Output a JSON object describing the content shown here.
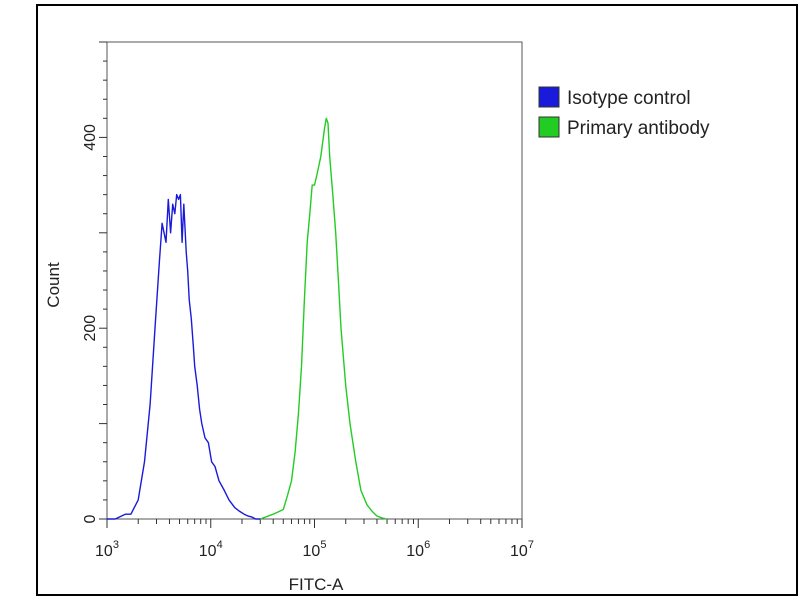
{
  "chart_data": {
    "type": "line",
    "title": "",
    "xlabel": "FITC-A",
    "ylabel": "Count",
    "x_scale": "log",
    "xlim": [
      1000,
      10000000
    ],
    "ylim": [
      0,
      500
    ],
    "x_tick_labels": [
      {
        "base": "10",
        "exp": "3"
      },
      {
        "base": "10",
        "exp": "4"
      },
      {
        "base": "10",
        "exp": "5"
      },
      {
        "base": "10",
        "exp": "6"
      },
      {
        "base": "10",
        "exp": "7"
      }
    ],
    "x_tick_values": [
      1000,
      10000,
      100000,
      1000000,
      10000000
    ],
    "y_tick_labels": [
      "0",
      "200",
      "400"
    ],
    "y_tick_values": [
      0,
      200,
      400
    ],
    "grid": false,
    "legend_position": "top-right",
    "series": [
      {
        "name": "Isotype control",
        "color": "#1a1adb",
        "x": [
          1000,
          1200,
          1500,
          1700,
          2000,
          2300,
          2600,
          2900,
          3200,
          3400,
          3700,
          3900,
          4100,
          4300,
          4500,
          4700,
          4900,
          5100,
          5300,
          5500,
          5800,
          6000,
          6200,
          6500,
          6800,
          7000,
          7400,
          7800,
          8200,
          8800,
          9500,
          10200,
          11000,
          12000,
          13500,
          15000,
          17000,
          19000,
          21000,
          23000,
          25000,
          27000,
          30000
        ],
        "y": [
          0,
          0,
          5,
          5,
          20,
          60,
          120,
          200,
          270,
          310,
          290,
          335,
          300,
          330,
          320,
          340,
          335,
          340,
          290,
          330,
          280,
          260,
          230,
          210,
          180,
          160,
          140,
          115,
          100,
          85,
          80,
          60,
          55,
          40,
          30,
          20,
          12,
          8,
          5,
          3,
          2,
          0,
          0
        ]
      },
      {
        "name": "Primary antibody",
        "color": "#22cc22",
        "x": [
          30000,
          40000,
          50000,
          55000,
          60000,
          65000,
          70000,
          75000,
          80000,
          85000,
          90000,
          95000,
          100000,
          105000,
          110000,
          115000,
          120000,
          125000,
          130000,
          135000,
          140000,
          150000,
          160000,
          170000,
          180000,
          200000,
          220000,
          250000,
          280000,
          320000,
          360000,
          400000,
          450000,
          500000
        ],
        "y": [
          0,
          5,
          10,
          25,
          40,
          70,
          110,
          160,
          230,
          290,
          320,
          350,
          350,
          360,
          370,
          380,
          395,
          410,
          420,
          415,
          380,
          340,
          300,
          250,
          200,
          140,
          100,
          60,
          30,
          15,
          8,
          3,
          1,
          0
        ]
      }
    ]
  },
  "colors": {
    "isotype_swatch": "#1a1adb",
    "primary_swatch": "#22cc22",
    "axis": "#333333"
  }
}
